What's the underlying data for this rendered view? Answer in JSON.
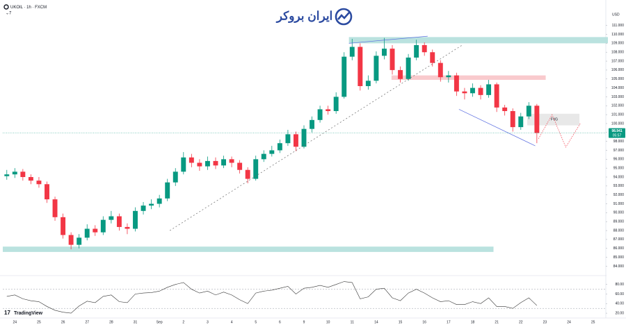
{
  "branding": {
    "logo": "ایران بروکر",
    "platform": "TradingView"
  },
  "chart_data": [
    {
      "type": "candlestick",
      "title": "UKOIL · 1h · FXCM",
      "indicators": "7",
      "currency": "USD",
      "colors": {
        "up": "#089981",
        "down": "#f23645"
      },
      "categories": [
        null,
        "24",
        null,
        null,
        "25",
        null,
        null,
        "26",
        null,
        null,
        "27",
        null,
        null,
        "28",
        null,
        null,
        "31",
        null,
        null,
        "Sep",
        null,
        null,
        "2",
        null,
        null,
        "3",
        null,
        null,
        "4",
        null,
        null,
        "5",
        null,
        null,
        "6",
        null,
        null,
        "9",
        null,
        null,
        "10",
        null,
        null,
        "11",
        null,
        null,
        "14",
        null,
        null,
        "15",
        null,
        null,
        "16",
        null,
        null,
        "17",
        null,
        null,
        "18",
        null,
        null,
        "21",
        null,
        null,
        "22",
        null,
        null,
        "23",
        null,
        null,
        "24",
        null,
        null,
        "25",
        null
      ],
      "open": [
        94.1,
        94.3,
        94.6,
        94.0,
        93.6,
        93.2,
        91.5,
        89.5,
        87.5,
        86.4,
        87.2,
        88.2,
        87.8,
        89.2,
        89.6,
        88.4,
        88.2,
        90.2,
        90.8,
        91.0,
        91.6,
        93.4,
        94.6,
        96.2,
        95.6,
        95.2,
        95.8,
        95.3,
        96.0,
        95.6,
        94.8,
        93.8,
        96.0,
        96.6,
        97.0,
        97.8,
        98.8,
        97.4,
        99.4,
        100.4,
        101.6,
        101.4,
        103.0,
        107.5,
        108.6,
        104.2,
        104.8,
        107.6,
        108.4,
        106.0,
        105.0,
        107.4,
        108.8,
        108.0,
        106.8,
        105.2,
        105.4,
        103.6,
        103.4,
        104.0,
        103.2,
        104.4,
        101.8,
        101.4,
        99.6,
        100.8,
        102.0,
        null,
        null,
        null,
        null,
        null,
        null,
        null,
        null
      ],
      "high": [
        94.8,
        95.0,
        94.9,
        94.3,
        94.0,
        93.5,
        91.8,
        89.9,
        87.8,
        87.6,
        88.7,
        88.6,
        89.6,
        90.2,
        89.9,
        88.8,
        90.6,
        91.2,
        91.5,
        92.0,
        93.8,
        95.0,
        96.8,
        96.6,
        96.0,
        96.3,
        96.2,
        96.4,
        96.3,
        95.9,
        95.1,
        96.4,
        97.0,
        97.5,
        98.2,
        99.3,
        99.1,
        99.8,
        100.8,
        102.0,
        102.0,
        103.5,
        108.0,
        109.5,
        109.0,
        105.4,
        108.1,
        109.6,
        108.8,
        106.4,
        107.8,
        109.4,
        109.1,
        108.3,
        107.1,
        105.9,
        105.7,
        104.0,
        104.5,
        104.3,
        104.9,
        104.6,
        102.1,
        101.7,
        101.2,
        102.4,
        102.2,
        null,
        null,
        null,
        null,
        null,
        null,
        null,
        null
      ],
      "low": [
        93.7,
        93.9,
        93.6,
        93.2,
        92.8,
        91.1,
        89.1,
        87.1,
        85.9,
        86.0,
        86.9,
        87.4,
        87.5,
        88.8,
        88.0,
        87.6,
        87.9,
        89.8,
        90.4,
        90.6,
        91.3,
        93.0,
        94.3,
        95.1,
        94.7,
        94.8,
        94.9,
        95.0,
        95.1,
        94.4,
        93.3,
        93.6,
        95.7,
        96.3,
        96.7,
        97.5,
        96.9,
        97.2,
        99.0,
        100.1,
        101.0,
        101.1,
        102.8,
        107.1,
        103.7,
        103.8,
        104.5,
        107.2,
        105.5,
        104.6,
        104.8,
        107.1,
        107.6,
        106.4,
        104.7,
        104.6,
        103.1,
        102.7,
        103.0,
        102.7,
        102.9,
        101.3,
        100.9,
        99.1,
        99.3,
        100.5,
        97.8,
        null,
        null,
        null,
        null,
        null,
        null,
        null,
        null
      ],
      "close": [
        94.3,
        94.6,
        94.0,
        93.6,
        93.2,
        91.5,
        89.5,
        87.5,
        86.4,
        87.2,
        88.2,
        87.8,
        89.2,
        89.6,
        88.4,
        88.2,
        90.2,
        90.8,
        91.0,
        91.6,
        93.4,
        94.6,
        96.2,
        95.6,
        95.2,
        95.8,
        95.3,
        96.0,
        95.6,
        94.8,
        93.8,
        96.0,
        96.6,
        97.0,
        97.8,
        98.8,
        97.4,
        99.4,
        100.4,
        101.6,
        101.4,
        103.0,
        107.5,
        108.6,
        104.2,
        104.8,
        107.6,
        108.4,
        106.0,
        105.0,
        107.4,
        108.8,
        108.0,
        106.8,
        105.2,
        105.4,
        103.6,
        103.4,
        104.0,
        103.2,
        104.4,
        101.8,
        101.4,
        99.6,
        100.8,
        102.0,
        98.941,
        null,
        null,
        null,
        null,
        null,
        null,
        null,
        null
      ],
      "last_price": {
        "value": 98.941,
        "label": "98.941"
      },
      "countdown": "05:57",
      "ylim": [
        83.1,
        112.3
      ],
      "yticks": [
        {
          "value": 84,
          "label": "84.000"
        },
        {
          "value": 85,
          "label": "85.000"
        },
        {
          "value": 86,
          "label": "86.000"
        },
        {
          "value": 87,
          "label": "87.000"
        },
        {
          "value": 88,
          "label": "88.000"
        },
        {
          "value": 89,
          "label": "89.000"
        },
        {
          "value": 90,
          "label": "90.000"
        },
        {
          "value": 91,
          "label": "91.000"
        },
        {
          "value": 92,
          "label": "92.000"
        },
        {
          "value": 93,
          "label": "93.000"
        },
        {
          "value": 94,
          "label": "94.000"
        },
        {
          "value": 95,
          "label": "95.000"
        },
        {
          "value": 96,
          "label": "96.000"
        },
        {
          "value": 97,
          "label": "97.000"
        },
        {
          "value": 98,
          "label": "98.000"
        },
        {
          "value": 99,
          "label": "99.000"
        },
        {
          "value": 100,
          "label": "100.000"
        },
        {
          "value": 101,
          "label": "101.000"
        },
        {
          "value": 102,
          "label": "102.000"
        },
        {
          "value": 103,
          "label": "103.000"
        },
        {
          "value": 104,
          "label": "104.000"
        },
        {
          "value": 105,
          "label": "105.000"
        },
        {
          "value": 106,
          "label": "106.000"
        },
        {
          "value": 107,
          "label": "107.000"
        },
        {
          "value": 108,
          "label": "108.000"
        },
        {
          "value": 109,
          "label": "109.000"
        },
        {
          "value": 110,
          "label": "110.000"
        },
        {
          "value": 111,
          "label": "111.000"
        }
      ],
      "zones": [
        {
          "low": 109.0,
          "high": 109.7,
          "start": 42.6,
          "end": 75,
          "color": "#b2dfdb"
        },
        {
          "low": 104.9,
          "high": 105.4,
          "start": 47.9,
          "end": 67.1,
          "color": "#f8c4c8"
        },
        {
          "low": 85.6,
          "high": 86.2,
          "start": -0.5,
          "end": 60.6,
          "color": "#b2dfdb"
        },
        {
          "low": 99.8,
          "high": 101.1,
          "start": 64.8,
          "end": 71.3,
          "color": "#e6e6e6",
          "label": "FVG"
        }
      ],
      "drawings": [
        {
          "points": [
            [
              20.3,
              88.0
            ],
            [
              56.7,
              108.8
            ]
          ],
          "color": "#666666",
          "dash": "2,3"
        },
        {
          "points": [
            [
              42.6,
              109.0
            ],
            [
              52.4,
              109.8
            ]
          ],
          "color": "#5b6ee1",
          "dash": "none"
        },
        {
          "points": [
            [
              56.3,
              101.6
            ],
            [
              65.8,
              97.5
            ]
          ],
          "color": "#5b6ee1",
          "dash": "none"
        },
        {
          "points": [
            [
              66.2,
              98.3
            ],
            [
              67.9,
              101.0
            ],
            [
              69.6,
              97.35
            ],
            [
              71.4,
              100.0
            ]
          ],
          "color": "#f23645",
          "dash": "1.5,1.5"
        }
      ]
    },
    {
      "type": "line",
      "name": "RSI",
      "color": "#333333",
      "values": [
        55,
        58,
        50,
        46,
        44,
        34,
        26,
        22,
        20,
        35,
        45,
        42,
        55,
        58,
        44,
        42,
        60,
        62,
        63,
        66,
        74,
        80,
        84,
        70,
        62,
        66,
        58,
        64,
        58,
        48,
        40,
        62,
        66,
        68,
        72,
        76,
        60,
        72,
        74,
        78,
        74,
        80,
        86,
        84,
        50,
        54,
        70,
        72,
        52,
        46,
        62,
        70,
        62,
        52,
        44,
        46,
        38,
        38,
        44,
        40,
        52,
        34,
        34,
        30,
        42,
        52,
        36,
        null,
        null,
        null,
        null,
        null,
        null,
        null,
        null
      ],
      "levels": [
        70,
        30
      ],
      "ylim": [
        10,
        94
      ],
      "yticks": [
        {
          "value": 80,
          "label": "80.00"
        },
        {
          "value": 60,
          "label": "60.00"
        },
        {
          "value": 40,
          "label": "40.00"
        },
        {
          "value": 20,
          "label": "20.00"
        }
      ]
    }
  ]
}
